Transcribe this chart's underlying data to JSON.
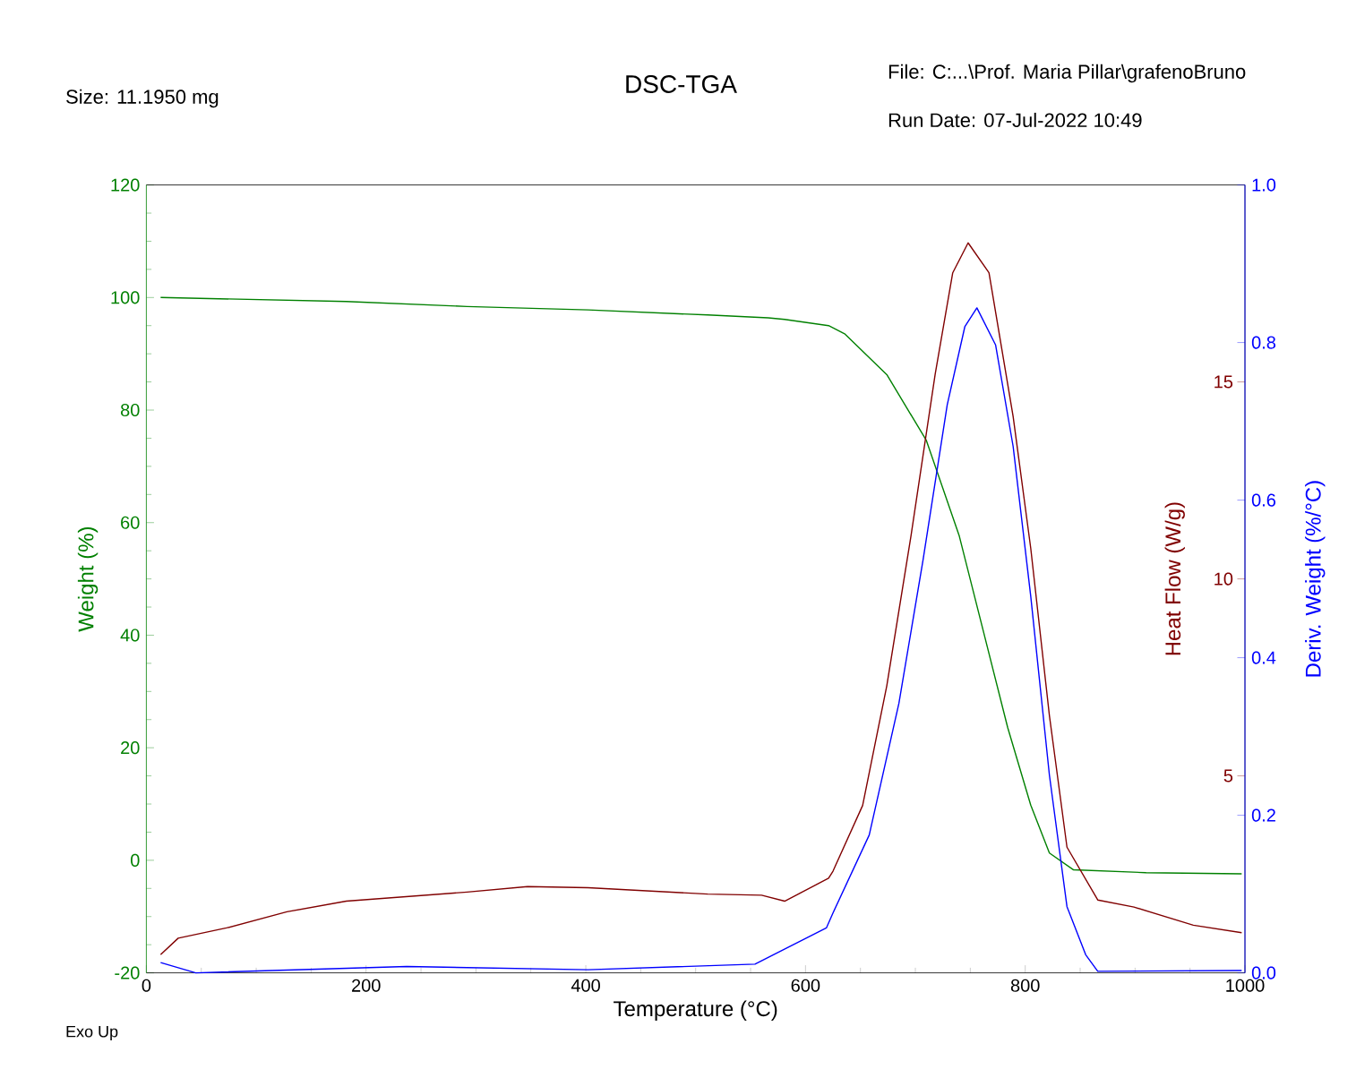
{
  "chart_data": {
    "type": "line",
    "title": "DSC-TGA",
    "xlabel": "Temperature (°C)",
    "ylabel": "Weight (%)",
    "y2label": "Heat Flow (W/g)",
    "y3label": "Deriv. Weight (%/°C)",
    "annotations": [
      "Size:  11.1950 mg",
      "File: C:...\\Prof. Maria Pillar\\grafenoBruno",
      "Run Date: 07-Jul-2022 10:49",
      "Exo Up"
    ],
    "xlim": [
      0,
      1000
    ],
    "xticks": [
      0,
      200,
      400,
      600,
      800,
      1000
    ],
    "ylim": [
      -20,
      120
    ],
    "yticks": [
      -20,
      0,
      20,
      40,
      60,
      80,
      100,
      120
    ],
    "y2lim": [
      0,
      20
    ],
    "y2ticks": [
      5,
      10,
      15
    ],
    "y3lim": [
      0,
      1
    ],
    "y3ticks": [
      {
        "value": 0,
        "label": "0.0"
      },
      0.2,
      0.4,
      0.6,
      0.8,
      {
        "value": 1,
        "label": "1.0"
      }
    ],
    "series": [
      {
        "color": "#008000",
        "axis": "y",
        "x": [
          13,
          182,
          292,
          402,
          511,
          566,
          581,
          621,
          636,
          674,
          710,
          740,
          762,
          784,
          805,
          822,
          844,
          910,
          997
        ],
        "values": [
          100,
          99.3,
          98.4,
          97.8,
          96.9,
          96.4,
          96.1,
          95.0,
          93.5,
          86.3,
          74.6,
          57.6,
          40.6,
          23.6,
          9.8,
          1.3,
          -1.7,
          -2.2,
          -2.4
        ]
      },
      {
        "color": "#800000",
        "axis": "y2",
        "x": [
          13,
          29,
          73,
          128,
          182,
          292,
          347,
          402,
          511,
          560,
          581,
          621,
          625,
          652,
          674,
          696,
          718,
          734,
          748,
          767,
          789,
          805,
          822,
          838,
          866,
          899,
          953,
          997
        ],
        "values": [
          0.46,
          0.88,
          1.14,
          1.55,
          1.82,
          2.05,
          2.19,
          2.16,
          2.0,
          1.97,
          1.82,
          2.4,
          2.58,
          4.25,
          7.29,
          11.09,
          15.19,
          17.77,
          18.53,
          17.77,
          14.12,
          10.78,
          6.53,
          3.19,
          1.85,
          1.67,
          1.21,
          1.02
        ]
      },
      {
        "color": "#0000ff",
        "axis": "y3",
        "x": [
          13,
          45,
          237,
          402,
          554,
          619,
          625,
          658,
          685,
          707,
          729,
          745,
          756,
          773,
          789,
          805,
          822,
          838,
          855,
          866,
          997
        ],
        "values": [
          0.013,
          0.0,
          0.008,
          0.004,
          0.011,
          0.057,
          0.076,
          0.175,
          0.342,
          0.524,
          0.721,
          0.82,
          0.844,
          0.797,
          0.668,
          0.478,
          0.251,
          0.084,
          0.023,
          0.002,
          0.003
        ]
      }
    ]
  }
}
